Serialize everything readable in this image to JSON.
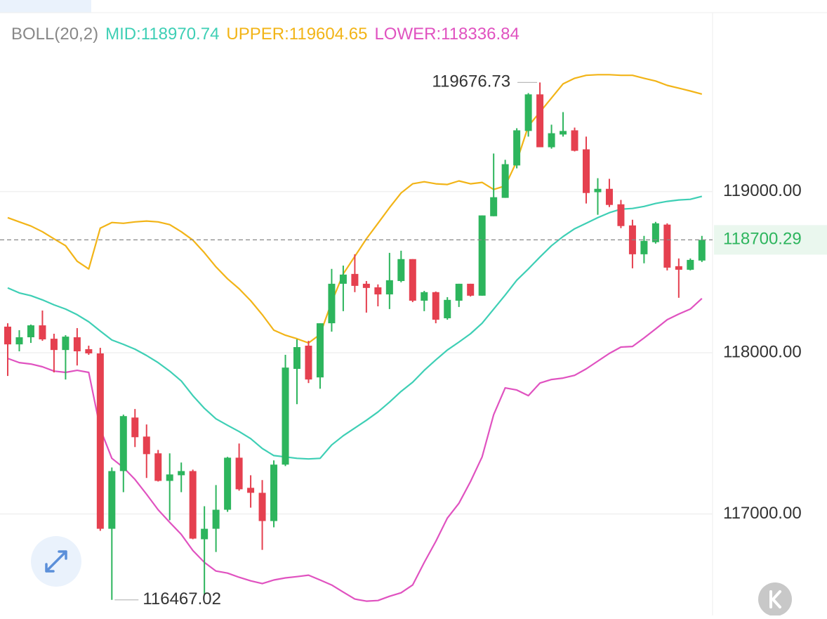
{
  "chart_data": {
    "type": "candlestick",
    "indicator": "BOLL(20,2)",
    "up_color": "#2db55d",
    "down_color": "#e5404f",
    "open": [
      118162,
      118052,
      118096,
      118170,
      118087,
      118017,
      118096,
      118022,
      117996,
      116908,
      117266,
      117598,
      117480,
      117376,
      117205,
      117240,
      117266,
      116843,
      116908,
      117026,
      117349,
      117162,
      117131,
      116956,
      117306,
      117900,
      118044,
      117847,
      118183,
      118428,
      118489,
      118428,
      118406,
      118362,
      118445,
      118581,
      118323,
      118376,
      118214,
      118323,
      118428,
      118354,
      118847,
      118961,
      119162,
      119376,
      119603,
      119275,
      119354,
      119380,
      119262,
      118996,
      119017,
      118921,
      118790,
      118611,
      118686,
      118795,
      118537,
      118515,
      118572
    ],
    "high": [
      118183,
      118140,
      118175,
      118262,
      118118,
      118109,
      118153,
      118044,
      118031,
      117288,
      117616,
      117651,
      117555,
      117397,
      117376,
      117319,
      117275,
      117048,
      117179,
      117354,
      117437,
      117240,
      117210,
      117332,
      117987,
      118083,
      118074,
      118183,
      118520,
      118541,
      118611,
      118445,
      118424,
      118620,
      118633,
      118581,
      118384,
      118380,
      118345,
      118428,
      118428,
      118852,
      119236,
      119197,
      119393,
      119611,
      119676.73,
      119415,
      119493,
      119397,
      119341,
      119083,
      119079,
      118948,
      118825,
      118725,
      118812,
      118803,
      118585,
      118585,
      118725
    ],
    "low": [
      117856,
      118009,
      118061,
      118074,
      117878,
      117834,
      117921,
      117987,
      116895,
      116467.02,
      117135,
      117415,
      117223,
      117201,
      116961,
      117135,
      116843,
      116502,
      116764,
      117013,
      117144,
      117039,
      116777,
      116917,
      117297,
      117681,
      117812,
      117777,
      118131,
      118258,
      118376,
      118249,
      118288,
      118271,
      118437,
      118314,
      118258,
      118183,
      118205,
      118284,
      118349,
      118354,
      118847,
      118961,
      119144,
      119341,
      119275,
      119266,
      119341,
      119249,
      118926,
      118856,
      118904,
      118773,
      118524,
      118555,
      118677,
      118511,
      118341,
      118511,
      118563
    ],
    "close": [
      118052,
      118096,
      118170,
      118083,
      118017,
      118100,
      118009,
      117996,
      116908,
      117266,
      117607,
      117476,
      117371,
      117205,
      117245,
      117266,
      116847,
      116908,
      117026,
      117349,
      117153,
      117131,
      116956,
      117306,
      117908,
      118035,
      117834,
      118183,
      118428,
      118485,
      118415,
      118402,
      118362,
      118450,
      118581,
      118323,
      118376,
      118205,
      118328,
      118428,
      118354,
      118852,
      118965,
      119170,
      119380,
      119603,
      119275,
      119362,
      119376,
      119253,
      118991,
      119017,
      118917,
      118786,
      118611,
      118694,
      118803,
      118528,
      118515,
      118576,
      118700.29
    ],
    "series": [
      {
        "name": "MID:",
        "color": "#3ecfb5",
        "values": [
          118402,
          118371,
          118354,
          118328,
          118297,
          118271,
          118236,
          118192,
          118135,
          118079,
          118052,
          118022,
          117983,
          117939,
          117886,
          117825,
          117734,
          117655,
          117590,
          117550,
          117511,
          117467,
          117406,
          117362,
          117354,
          117345,
          117341,
          117345,
          117428,
          117485,
          117533,
          117581,
          117633,
          117694,
          117760,
          117817,
          117891,
          117956,
          118017,
          118066,
          118118,
          118183,
          118271,
          118358,
          118450,
          118520,
          118594,
          118664,
          118721,
          118769,
          118803,
          118838,
          118869,
          118891,
          118895,
          118908,
          118926,
          118939,
          118948,
          118952,
          118970.74
        ]
      },
      {
        "name": "UPPER:",
        "color": "#f2b417",
        "values": [
          118838,
          118812,
          118786,
          118751,
          118707,
          118664,
          118568,
          118520,
          118773,
          118808,
          118803,
          118812,
          118817,
          118812,
          118795,
          118751,
          118699,
          118620,
          118533,
          118459,
          118397,
          118323,
          118236,
          118140,
          118109,
          118087,
          118061,
          118114,
          118314,
          118489,
          118598,
          118707,
          118803,
          118900,
          118991,
          119048,
          119061,
          119048,
          119044,
          119066,
          119048,
          119057,
          119013,
          119035,
          119188,
          119406,
          119493,
          119581,
          119668,
          119703,
          119721,
          119725,
          119725,
          119721,
          119721,
          119703,
          119686,
          119659,
          119642,
          119624,
          119604.65
        ]
      },
      {
        "name": "LOWER:",
        "color": "#e052c0",
        "values": [
          117965,
          117939,
          117930,
          117913,
          117886,
          117878,
          117891,
          117878,
          117528,
          117345,
          117288,
          117214,
          117122,
          117026,
          116948,
          116873,
          116773,
          116699,
          116646,
          116633,
          116607,
          116585,
          116568,
          116590,
          116603,
          116611,
          116620,
          116590,
          116559,
          116515,
          116472,
          116459,
          116463,
          116489,
          116511,
          116559,
          116699,
          116830,
          116974,
          117066,
          117201,
          117354,
          117616,
          117782,
          117769,
          117734,
          117812,
          117834,
          117843,
          117860,
          117900,
          117948,
          117996,
          118035,
          118039,
          118092,
          118148,
          118205,
          118240,
          118271,
          118336.84
        ]
      }
    ],
    "ylim": [
      116370,
      120110
    ],
    "yticks": [
      {
        "value": 119000,
        "label": "119000.00"
      },
      {
        "value": 118000,
        "label": "118000.00"
      },
      {
        "value": 117000,
        "label": "117000.00"
      }
    ],
    "grid": true,
    "y_axis_side": "right"
  }
}
